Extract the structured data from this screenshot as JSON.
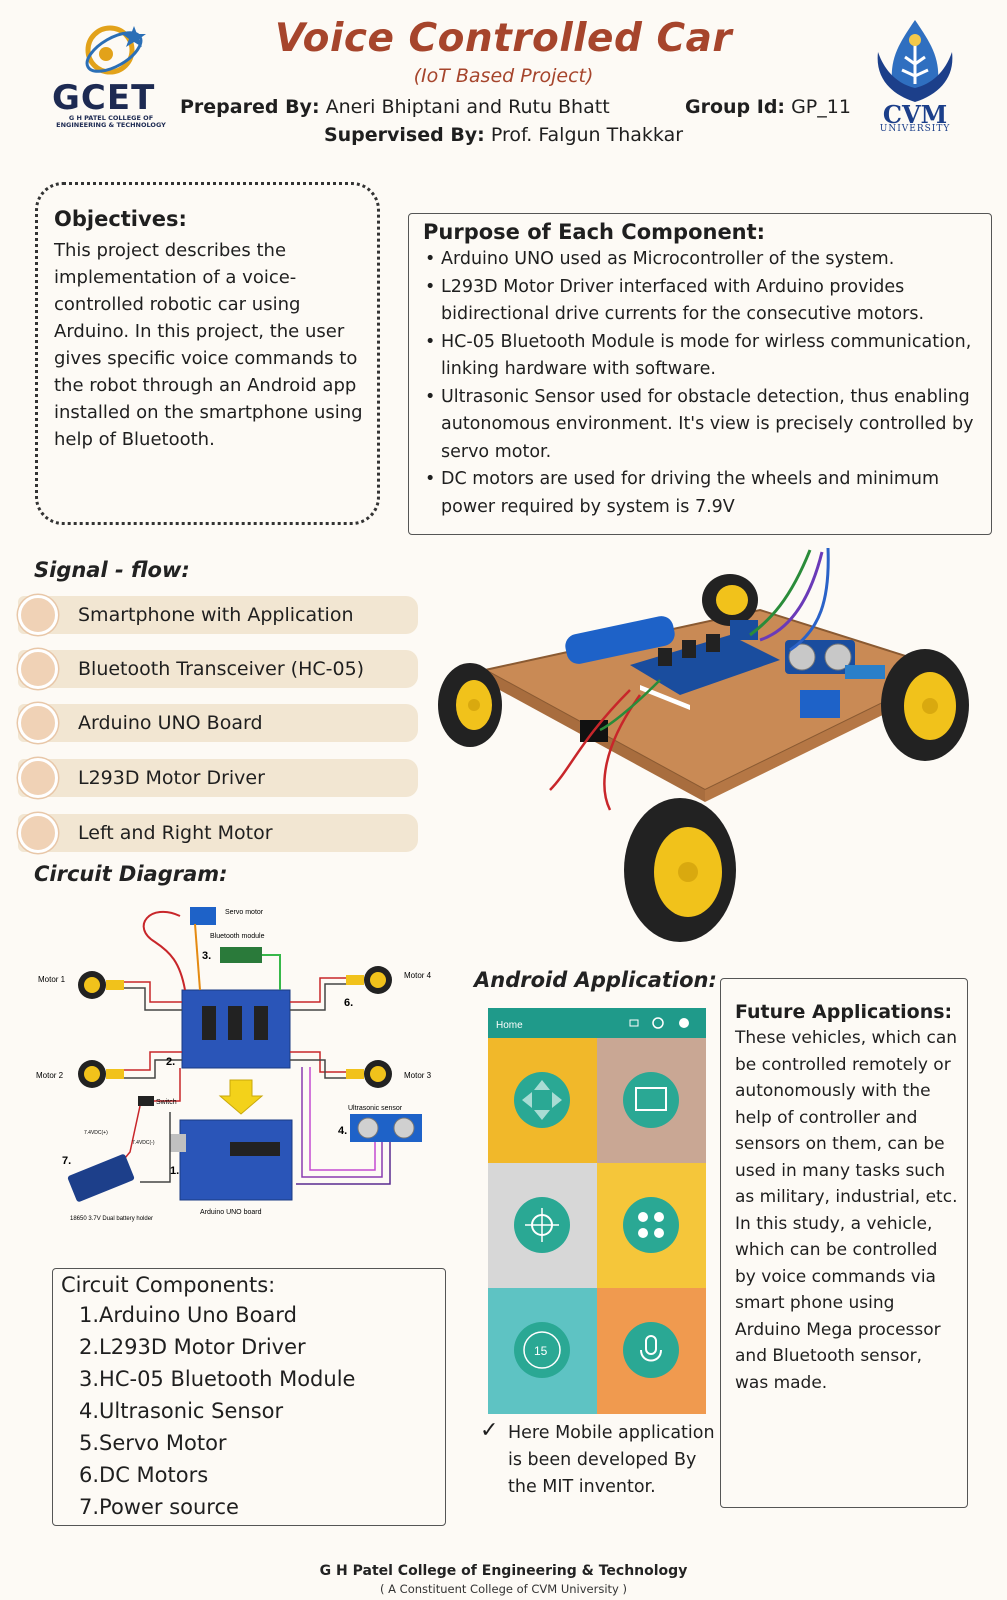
{
  "header": {
    "title": "Voice Controlled Car",
    "subtitle": "(IoT Based Project)",
    "prepared_label": "Prepared By:",
    "prepared_value": " Aneri Bhiptani and Rutu Bhatt",
    "group_label": "Group Id:",
    "group_value": " GP_11",
    "supervised_label": "Supervised By:",
    "supervised_value": " Prof. Falgun Thakkar"
  },
  "logos": {
    "gcet_name": "GCET",
    "gcet_sub": "G H PATEL COLLEGE OF ENGINEERING & TECHNOLOGY",
    "cvm_name": "CVM",
    "cvm_sub": "UNIVERSITY"
  },
  "objectives": {
    "title": "Objectives:",
    "text": "This project describes the implementation of a voice-controlled robotic car using Arduino. In this project, the user gives specific voice commands to the robot through an Android app installed on the smartphone using help of Bluetooth."
  },
  "purpose": {
    "title": "Purpose of Each Component:",
    "items": [
      "Arduino UNO used as Microcontroller of the system.",
      "L293D Motor Driver interfaced with Arduino provides bidirectional drive currents for the consecutive motors.",
      "HC-05 Bluetooth Module is mode for wirless communication, linking hardware with software.",
      "Ultrasonic Sensor used for obstacle detection, thus enabling autonomous environment. It's view is precisely controlled by servo motor.",
      "DC motors are used for driving the wheels and minimum power required by system is 7.9V"
    ]
  },
  "signal_flow": {
    "title": "Signal - flow:",
    "items": [
      "Smartphone with Application",
      "Bluetooth Transceiver (HC-05)",
      "Arduino UNO Board",
      "L293D Motor Driver",
      "Left and Right Motor"
    ]
  },
  "circuit": {
    "title": "Circuit Diagram:",
    "labels": {
      "servo": "Servo motor",
      "bt": "Bluetooth module",
      "motor1": "Motor 1",
      "motor2": "Motor 2",
      "motor3": "Motor 3",
      "motor4": "Motor 4",
      "switch": "Switch",
      "ultra": "Ultrasonic sensor",
      "arduino": "Arduino UNO board",
      "battery": "18650 3.7V Dual battery holder",
      "vplus": "7.4VDC(+)",
      "vminus": "7.4VDC(-)",
      "n1": "1.",
      "n2": "2.",
      "n3": "3.",
      "n4": "4.",
      "n5": "5.",
      "n6": "6.",
      "n7": "7."
    }
  },
  "circuit_components": {
    "title": "Circuit Components:",
    "items": [
      "1.Arduino Uno Board",
      "2.L293D Motor Driver",
      "3.HC-05 Bluetooth Module",
      "4.Ultrasonic Sensor",
      "5.Servo Motor",
      "6.DC Motors",
      "7.Power source"
    ]
  },
  "android": {
    "title": "Android Application:",
    "app_bar": "Home",
    "tile_number": "15",
    "note_check": "✓",
    "note": "Here Mobile application is been developed By the MIT inventor."
  },
  "future": {
    "title": "Future Applications:",
    "text": "These vehicles, which can be controlled remotely or autonomously with the help of controller and sensors on them, can be used in many tasks such as military, industrial, etc. In this study, a vehicle, which can be controlled by voice commands via smart phone using Arduino Mega processor and Bluetooth sensor, was made."
  },
  "footer": {
    "line1": "G H Patel College of Engineering & Technology",
    "line2": "( A Constituent College of CVM University )"
  },
  "colors": {
    "title": "#a6452c",
    "flow_bg": "#f2e6d2",
    "flow_circle": "#f0d2b6",
    "app_bar": "#1f9a8a"
  }
}
